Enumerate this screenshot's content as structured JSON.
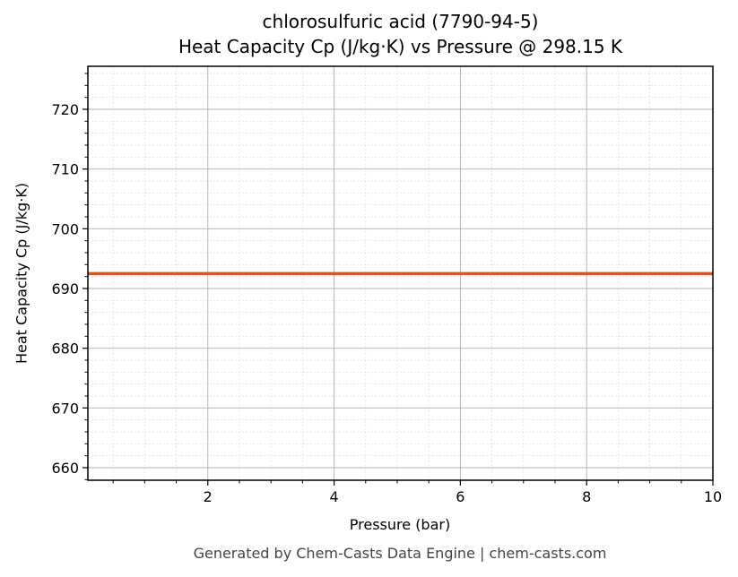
{
  "chart": {
    "title_line1": "chlorosulfuric acid (7790-94-5)",
    "title_line2": "Heat Capacity Cp (J/kg·K) vs Pressure @ 298.15 K",
    "xlabel": "Pressure (bar)",
    "ylabel": "Heat Capacity Cp (J/kg·K)",
    "footer": "Generated by Chem-Casts Data Engine | chem-casts.com",
    "line_color": "#d4572a"
  },
  "chart_data": {
    "type": "line",
    "title": "chlorosulfuric acid (7790-94-5) — Heat Capacity Cp (J/kg·K) vs Pressure @ 298.15 K",
    "xlabel": "Pressure (bar)",
    "ylabel": "Heat Capacity Cp (J/kg·K)",
    "xlim": [
      0.1,
      10
    ],
    "ylim": [
      657.9,
      727.2
    ],
    "x_ticks": [
      2,
      4,
      6,
      8,
      10
    ],
    "y_ticks": [
      660,
      670,
      680,
      690,
      700,
      710,
      720
    ],
    "grid": true,
    "minor_grid": true,
    "legend": null,
    "series": [
      {
        "name": "Cp",
        "color": "#d4572a",
        "x": [
          0.1,
          1,
          2,
          3,
          4,
          5,
          6,
          7,
          8,
          9,
          10
        ],
        "values": [
          692.5,
          692.5,
          692.5,
          692.5,
          692.5,
          692.5,
          692.5,
          692.5,
          692.5,
          692.5,
          692.5
        ]
      }
    ]
  }
}
